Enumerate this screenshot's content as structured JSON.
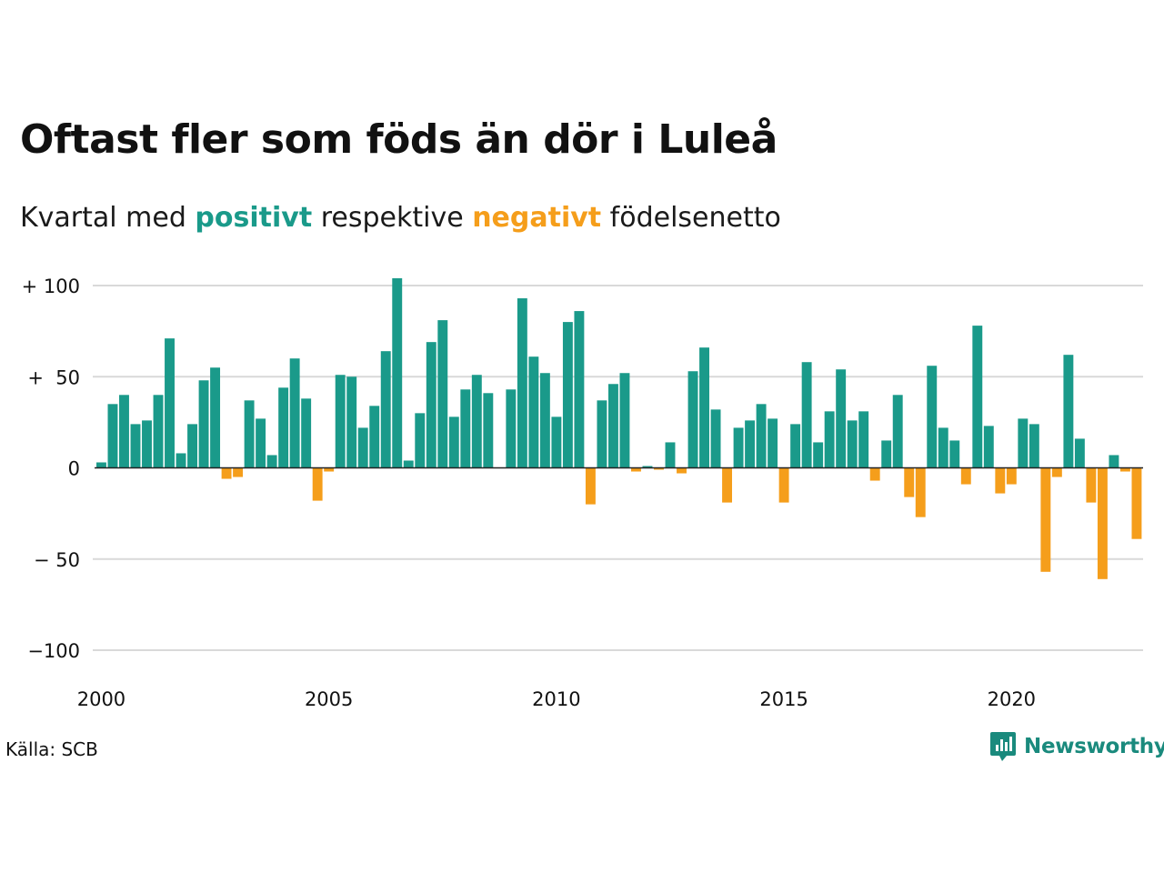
{
  "title": "Oftast fler som föds än dör i Luleå",
  "subtitle": {
    "prefix": "Kvartal med ",
    "positive": "positivt",
    "middle": " respektive ",
    "negative": "negativt",
    "suffix": " födelsenetto"
  },
  "source": "Källa: SCB",
  "brand": {
    "name": "Newsworthy",
    "icon": "newsworthy-logo-icon"
  },
  "colors": {
    "positive": "#1a9a8a",
    "negative": "#f59e1b",
    "grid": "#d9d9d9",
    "axis": "#222222"
  },
  "chart_data": {
    "type": "bar",
    "title": "Oftast fler som föds än dör i Luleå",
    "subtitle": "Kvartal med positivt respektive negativt födelsenetto",
    "xlabel": "",
    "ylabel": "",
    "ylim": [
      -100,
      100
    ],
    "y_ticks": [
      {
        "value": 100,
        "label": "+ 100"
      },
      {
        "value": 50,
        "label": "+  50"
      },
      {
        "value": 0,
        "label": "0"
      },
      {
        "value": -50,
        "label": "− 50"
      },
      {
        "value": -100,
        "label": "−100"
      }
    ],
    "x_ticks": [
      "2000",
      "2005",
      "2010",
      "2015",
      "2020"
    ],
    "grid": true,
    "legend": "none",
    "start_year": 2000,
    "values": [
      3,
      35,
      40,
      24,
      26,
      40,
      71,
      8,
      24,
      48,
      55,
      -6,
      -5,
      37,
      27,
      7,
      44,
      60,
      38,
      -18,
      -2,
      51,
      50,
      22,
      34,
      64,
      104,
      4,
      30,
      69,
      81,
      28,
      43,
      51,
      41,
      0,
      43,
      93,
      61,
      52,
      28,
      80,
      86,
      -20,
      37,
      46,
      52,
      -2,
      1,
      -1,
      14,
      -3,
      53,
      66,
      32,
      -19,
      22,
      26,
      35,
      27,
      -19,
      24,
      58,
      14,
      31,
      54,
      26,
      31,
      -7,
      15,
      40,
      -16,
      -27,
      56,
      22,
      15,
      -9,
      78,
      23,
      -14,
      -9,
      27,
      24,
      -57,
      -5,
      62,
      16,
      -19,
      -61,
      7,
      -2,
      -39
    ]
  }
}
